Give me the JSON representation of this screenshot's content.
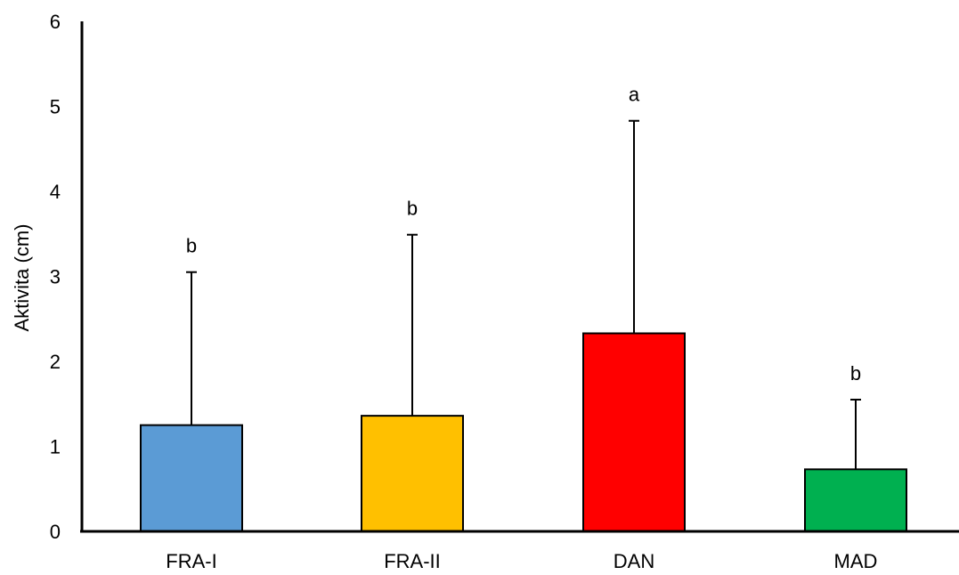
{
  "chart_data": {
    "type": "bar",
    "title": "",
    "xlabel": "",
    "ylabel": "Aktivita (cm)",
    "ylim": [
      0,
      6
    ],
    "yticks": [
      "0",
      "1",
      "2",
      "3",
      "4",
      "5",
      "6"
    ],
    "grid": false,
    "categories": [
      "FRA-I",
      "FRA-II",
      "DAN",
      "MAD"
    ],
    "values": [
      1.25,
      1.36,
      2.33,
      0.73
    ],
    "error_upper": [
      3.05,
      3.49,
      4.83,
      1.55
    ],
    "significance_labels": [
      "b",
      "b",
      "a",
      "b"
    ],
    "colors": [
      "#5b9bd5",
      "#ffc000",
      "#ff0000",
      "#00b050"
    ]
  }
}
